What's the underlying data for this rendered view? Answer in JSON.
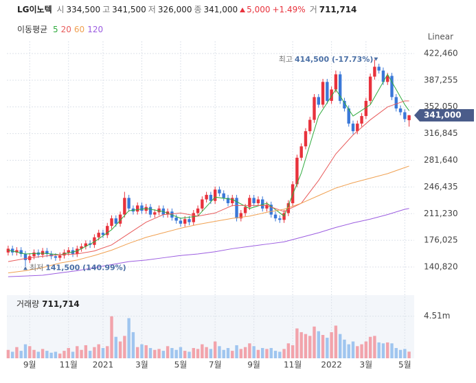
{
  "header": {
    "name": "LG이노텍",
    "items": [
      {
        "label": "시",
        "value": "334,500"
      },
      {
        "label": "고",
        "value": "341,500"
      },
      {
        "label": "저",
        "value": "326,000"
      },
      {
        "label": "종",
        "value": "341,000"
      }
    ],
    "change": "5,000",
    "change_pct": "+1.49%",
    "volume_label": "거",
    "volume": "711,714"
  },
  "chart_data": {
    "type": "candlestick",
    "scale_label": "Linear",
    "ma_label": "이동평균",
    "max_label": "최고",
    "max_value": "414,500 (-17.73%)",
    "min_label": "최저",
    "min_value": "141,500 (140.99%)",
    "volume_title": "거래량",
    "volume_title_value": "711,714",
    "price_tag": "341,000",
    "up_color": "#e8323c",
    "down_color": "#3a78d8",
    "vol_up_color": "#f2a3ab",
    "vol_down_color": "#9fc5ef",
    "xlim": [
      -0.3,
      93.7
    ],
    "xticks": [
      {
        "value": 5,
        "label": "9월"
      },
      {
        "value": 14,
        "label": "11월"
      },
      {
        "value": 22,
        "label": "2021"
      },
      {
        "value": 31,
        "label": "3월"
      },
      {
        "value": 40,
        "label": "5월"
      },
      {
        "value": 48,
        "label": "7월"
      },
      {
        "value": 57,
        "label": "9월"
      },
      {
        "value": 66,
        "label": "11월"
      },
      {
        "value": 75,
        "label": "2022"
      },
      {
        "value": 83,
        "label": "3월"
      },
      {
        "value": 92,
        "label": "5월"
      }
    ],
    "ylim": [
      121815,
      438750
    ],
    "yticks": [
      {
        "value": 140820,
        "label": "140,820"
      },
      {
        "value": 176025,
        "label": "176,025"
      },
      {
        "value": 211230,
        "label": "211,230"
      },
      {
        "value": 246435,
        "label": "246,435"
      },
      {
        "value": 281640,
        "label": "281,640"
      },
      {
        "value": 316845,
        "label": "316,845"
      },
      {
        "value": 352050,
        "label": "352,050"
      },
      {
        "value": 387255,
        "label": "387,255"
      },
      {
        "value": 422460,
        "label": "422,460"
      }
    ],
    "vol_ylim": [
      0,
      6765000
    ],
    "vol_yticks": [
      {
        "value": 4510000,
        "label": "4.51m"
      }
    ],
    "max_index": 85,
    "min_index": 4,
    "open": [
      160000,
      165000,
      160000,
      163000,
      158000,
      150000,
      155000,
      160000,
      157000,
      162000,
      158000,
      155000,
      153000,
      156000,
      160000,
      163000,
      158000,
      165000,
      168000,
      172000,
      170000,
      180000,
      186000,
      183000,
      195000,
      205000,
      198000,
      210000,
      232000,
      218000,
      214000,
      222000,
      215000,
      220000,
      210000,
      213000,
      218000,
      210000,
      214000,
      206000,
      202000,
      198000,
      204000,
      200000,
      212000,
      218000,
      230000,
      236000,
      228000,
      243000,
      238000,
      232000,
      225000,
      232000,
      205000,
      212000,
      220000,
      232000,
      225000,
      230000,
      218000,
      223000,
      210000,
      205000,
      203000,
      212000,
      225000,
      250000,
      285000,
      300000,
      320000,
      335000,
      365000,
      355000,
      385000,
      360000,
      375000,
      395000,
      360000,
      350000,
      330000,
      320000,
      330000,
      340000,
      360000,
      392000,
      405000,
      400000,
      385000,
      393000,
      365000,
      350000,
      345000,
      334500
    ],
    "high": [
      169000,
      169000,
      167000,
      167000,
      162000,
      159000,
      164000,
      164000,
      166000,
      166000,
      162000,
      159000,
      160000,
      164000,
      167000,
      167000,
      169000,
      172000,
      176000,
      176000,
      184000,
      190000,
      190000,
      199000,
      209000,
      209000,
      214000,
      240000,
      236000,
      222000,
      226000,
      226000,
      224000,
      224000,
      217000,
      222000,
      222000,
      218000,
      218000,
      210000,
      206000,
      208000,
      208000,
      216000,
      222000,
      234000,
      240000,
      240000,
      247000,
      247000,
      242000,
      236000,
      236000,
      236000,
      216000,
      224000,
      236000,
      236000,
      234000,
      234000,
      227000,
      227000,
      214000,
      209000,
      216000,
      229000,
      254000,
      289000,
      304000,
      324000,
      339000,
      369000,
      369000,
      389000,
      389000,
      379000,
      400000,
      399000,
      364000,
      354000,
      334000,
      334000,
      344000,
      364000,
      396000,
      414500,
      409000,
      404000,
      397000,
      397000,
      369000,
      354000,
      349000,
      341500
    ],
    "low": [
      156000,
      156000,
      156000,
      154000,
      141500,
      146000,
      151000,
      153000,
      153000,
      154000,
      151000,
      149000,
      149000,
      152000,
      156000,
      154000,
      154000,
      161000,
      164000,
      166000,
      166000,
      176000,
      179000,
      179000,
      191000,
      194000,
      194000,
      206000,
      214000,
      210000,
      210000,
      211000,
      211000,
      206000,
      206000,
      209000,
      206000,
      206000,
      202000,
      198000,
      194000,
      194000,
      196000,
      196000,
      208000,
      214000,
      226000,
      224000,
      224000,
      234000,
      228000,
      221000,
      221000,
      201000,
      201000,
      208000,
      216000,
      221000,
      221000,
      214000,
      214000,
      206000,
      201000,
      199000,
      199000,
      208000,
      221000,
      246000,
      281000,
      296000,
      316000,
      331000,
      351000,
      351000,
      356000,
      356000,
      371000,
      356000,
      346000,
      326000,
      316000,
      316000,
      326000,
      336000,
      356000,
      388000,
      396000,
      381000,
      381000,
      361000,
      346000,
      341000,
      332000,
      326000
    ],
    "close": [
      165000,
      160000,
      163000,
      158000,
      150000,
      155000,
      160000,
      157000,
      162000,
      158000,
      155000,
      153000,
      156000,
      160000,
      163000,
      158000,
      165000,
      168000,
      172000,
      170000,
      180000,
      186000,
      183000,
      195000,
      205000,
      198000,
      210000,
      232000,
      218000,
      214000,
      222000,
      215000,
      220000,
      210000,
      213000,
      218000,
      210000,
      214000,
      206000,
      202000,
      198000,
      204000,
      200000,
      212000,
      218000,
      230000,
      236000,
      228000,
      243000,
      238000,
      232000,
      225000,
      232000,
      205000,
      212000,
      220000,
      232000,
      225000,
      230000,
      218000,
      223000,
      210000,
      205000,
      203000,
      212000,
      225000,
      250000,
      285000,
      300000,
      320000,
      335000,
      365000,
      355000,
      385000,
      360000,
      375000,
      395000,
      360000,
      350000,
      330000,
      320000,
      330000,
      340000,
      360000,
      392000,
      405000,
      400000,
      385000,
      393000,
      365000,
      350000,
      345000,
      336000,
      341000
    ],
    "volume": [
      900000,
      700000,
      1200000,
      800000,
      1500000,
      1300000,
      900000,
      700000,
      1000000,
      800000,
      600000,
      700000,
      500000,
      800000,
      1100000,
      700000,
      1300000,
      900000,
      1400000,
      800000,
      1200000,
      1500000,
      1100000,
      1300000,
      4500000,
      2300000,
      1800000,
      2400000,
      4300000,
      2800000,
      1200000,
      1500000,
      1400000,
      1100000,
      900000,
      1000000,
      800000,
      1300000,
      1100000,
      900000,
      1200000,
      800000,
      700000,
      1100000,
      1000000,
      1500000,
      1200000,
      1000000,
      1800000,
      1300000,
      900000,
      1100000,
      800000,
      1400000,
      1000000,
      1200000,
      1600000,
      1300000,
      900000,
      1100000,
      1000000,
      1100000,
      800000,
      700000,
      1000000,
      1600000,
      1400000,
      3200000,
      2800000,
      2600000,
      2400000,
      3400000,
      2900000,
      2500000,
      2200000,
      2800000,
      3500000,
      2600000,
      2000000,
      1500000,
      1800000,
      1300000,
      1500000,
      1800000,
      2300000,
      2400000,
      1700000,
      1600000,
      1700000,
      1600000,
      1100000,
      900000,
      1000000,
      711714
    ],
    "series": [
      {
        "name": "5",
        "color": "#2eaa3c",
        "x": [
          0,
          4,
          8,
          12,
          16,
          20,
          24,
          28,
          32,
          36,
          40,
          44,
          48,
          52,
          56,
          60,
          64,
          68,
          72,
          76,
          80,
          84,
          88,
          92,
          93
        ],
        "values": [
          163000,
          158000,
          159000,
          157000,
          162000,
          174000,
          190000,
          215000,
          218000,
          214000,
          205000,
          208000,
          233000,
          230000,
          218000,
          225000,
          208000,
          265000,
          340000,
          375000,
          340000,
          355000,
          395000,
          355000,
          347000
        ]
      },
      {
        "name": "20",
        "color": "#e85a5a",
        "x": [
          0,
          4,
          8,
          12,
          16,
          20,
          24,
          28,
          32,
          36,
          40,
          44,
          48,
          52,
          56,
          60,
          64,
          68,
          72,
          76,
          80,
          84,
          88,
          92,
          93
        ],
        "values": [
          148000,
          152000,
          155000,
          157000,
          158000,
          162000,
          170000,
          185000,
          200000,
          210000,
          212000,
          208000,
          212000,
          222000,
          222000,
          222000,
          214000,
          225000,
          255000,
          290000,
          315000,
          335000,
          352000,
          360000,
          360000
        ]
      },
      {
        "name": "60",
        "color": "#f0a050",
        "x": [
          0,
          4,
          8,
          12,
          16,
          20,
          24,
          28,
          32,
          36,
          40,
          44,
          48,
          52,
          56,
          60,
          64,
          68,
          72,
          76,
          80,
          84,
          88,
          92,
          93
        ],
        "values": [
          133000,
          136000,
          140000,
          146000,
          150000,
          156000,
          163000,
          172000,
          180000,
          186000,
          192000,
          197000,
          201000,
          205000,
          208000,
          213000,
          217000,
          225000,
          235000,
          245000,
          252000,
          258000,
          264000,
          272000,
          274000
        ]
      },
      {
        "name": "120",
        "color": "#9b5ce0",
        "x": [
          0,
          4,
          8,
          12,
          16,
          20,
          24,
          28,
          32,
          36,
          40,
          44,
          48,
          52,
          56,
          60,
          64,
          68,
          72,
          76,
          80,
          84,
          88,
          92,
          93
        ],
        "values": [
          128000,
          129000,
          130000,
          133000,
          136000,
          140000,
          144000,
          148000,
          150000,
          153000,
          156000,
          158000,
          161000,
          165000,
          168000,
          171000,
          174000,
          180000,
          186000,
          193000,
          199000,
          204000,
          210000,
          217000,
          218000
        ]
      }
    ]
  }
}
